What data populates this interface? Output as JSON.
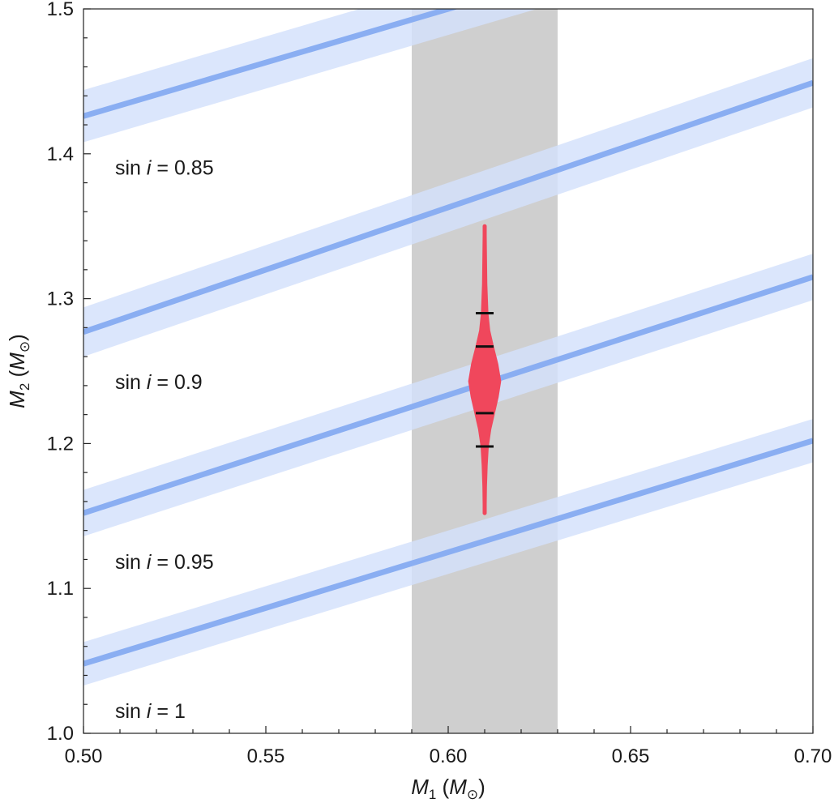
{
  "chart_data": {
    "type": "line",
    "title": "",
    "xlabel": {
      "main": "M",
      "sub": "1",
      "unit_open": " (",
      "unit_main": "M",
      "unit_sub": "⊙",
      "unit_close": ")"
    },
    "ylabel": {
      "main": "M",
      "sub": "2",
      "unit_open": " (",
      "unit_main": "M",
      "unit_sub": "⊙",
      "unit_close": ")"
    },
    "xlim": [
      0.5,
      0.7
    ],
    "ylim": [
      1.0,
      1.5
    ],
    "x_ticks": [
      "0.50",
      "0.55",
      "0.60",
      "0.65",
      "0.70"
    ],
    "y_ticks": [
      "1.0",
      "1.1",
      "1.2",
      "1.3",
      "1.4",
      "1.5"
    ],
    "x_minor_step": 0.01,
    "y_minor_step": 0.02,
    "shaded_x_band": {
      "x0": 0.59,
      "x1": 0.63,
      "color": "#cfcfcf"
    },
    "series": [
      {
        "label_prefix": "sin ",
        "label_var": "i",
        "label_suffix": " = 0.85",
        "y_at_xmin": 1.426,
        "y_at_xmax": 1.574,
        "band_halfwidth": 0.018
      },
      {
        "label_prefix": "sin ",
        "label_var": "i",
        "label_suffix": " = 0.9",
        "y_at_xmin": 1.277,
        "y_at_xmax": 1.449,
        "band_halfwidth": 0.017
      },
      {
        "label_prefix": "sin ",
        "label_var": "i",
        "label_suffix": " = 0.95",
        "y_at_xmin": 1.152,
        "y_at_xmax": 1.315,
        "band_halfwidth": 0.016
      },
      {
        "label_prefix": "sin ",
        "label_var": "i",
        "label_suffix": " = 1",
        "y_at_xmin": 1.048,
        "y_at_xmax": 1.202,
        "band_halfwidth": 0.015
      }
    ],
    "line_color": "#8aaef2",
    "band_color": "#d3e1fb",
    "violin": {
      "x": 0.61,
      "color": "#f0475c",
      "y_min": 1.152,
      "y_max": 1.35,
      "median": 1.243,
      "quantiles": [
        1.198,
        1.221,
        1.267,
        1.29
      ],
      "profile": [
        [
          1.152,
          0.0003
        ],
        [
          1.17,
          0.0004
        ],
        [
          1.185,
          0.0006
        ],
        [
          1.198,
          0.0009
        ],
        [
          1.21,
          0.0016
        ],
        [
          1.221,
          0.0026
        ],
        [
          1.232,
          0.0036
        ],
        [
          1.243,
          0.0043
        ],
        [
          1.255,
          0.0035
        ],
        [
          1.267,
          0.0023
        ],
        [
          1.278,
          0.0013
        ],
        [
          1.29,
          0.0008
        ],
        [
          1.31,
          0.0005
        ],
        [
          1.33,
          0.0004
        ],
        [
          1.35,
          0.0003
        ]
      ]
    }
  }
}
